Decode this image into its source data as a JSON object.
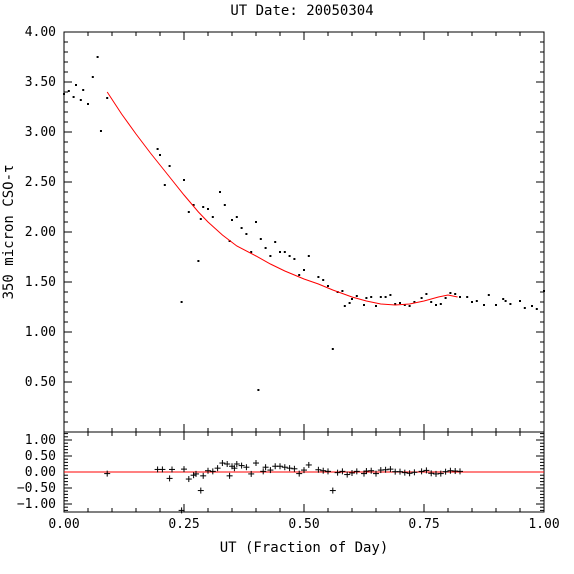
{
  "chart_data": {
    "type": "scatter",
    "title": "UT Date: 20050304",
    "xlabel": "UT (Fraction of Day)",
    "ylabel": "350 micron CSO-τ",
    "xlim": [
      0.0,
      1.0
    ],
    "ylim": [
      0.0,
      4.0
    ],
    "x_ticks": [
      "0.00",
      "0.25",
      "0.50",
      "0.75",
      "1.00"
    ],
    "y_ticks": [
      "0.50",
      "1.00",
      "1.50",
      "2.00",
      "2.50",
      "3.00",
      "3.50",
      "4.00"
    ],
    "points": [
      [
        0.0,
        3.38
      ],
      [
        0.01,
        3.41
      ],
      [
        0.02,
        3.35
      ],
      [
        0.025,
        3.47
      ],
      [
        0.035,
        3.32
      ],
      [
        0.04,
        3.42
      ],
      [
        0.05,
        3.28
      ],
      [
        0.06,
        3.55
      ],
      [
        0.07,
        3.75
      ],
      [
        0.077,
        3.01
      ],
      [
        0.09,
        3.34
      ],
      [
        0.195,
        2.83
      ],
      [
        0.2,
        2.77
      ],
      [
        0.21,
        2.47
      ],
      [
        0.22,
        2.66
      ],
      [
        0.245,
        1.3
      ],
      [
        0.25,
        2.52
      ],
      [
        0.26,
        2.2
      ],
      [
        0.27,
        2.27
      ],
      [
        0.28,
        1.71
      ],
      [
        0.285,
        2.13
      ],
      [
        0.29,
        2.25
      ],
      [
        0.3,
        2.23
      ],
      [
        0.31,
        2.15
      ],
      [
        0.325,
        2.4
      ],
      [
        0.335,
        2.27
      ],
      [
        0.345,
        1.91
      ],
      [
        0.35,
        2.12
      ],
      [
        0.36,
        2.15
      ],
      [
        0.37,
        2.04
      ],
      [
        0.38,
        1.98
      ],
      [
        0.39,
        1.8
      ],
      [
        0.4,
        2.1
      ],
      [
        0.405,
        0.42
      ],
      [
        0.41,
        1.93
      ],
      [
        0.42,
        1.84
      ],
      [
        0.43,
        1.76
      ],
      [
        0.44,
        1.9
      ],
      [
        0.45,
        1.8
      ],
      [
        0.46,
        1.8
      ],
      [
        0.47,
        1.76
      ],
      [
        0.48,
        1.73
      ],
      [
        0.49,
        1.57
      ],
      [
        0.5,
        1.62
      ],
      [
        0.51,
        1.76
      ],
      [
        0.53,
        1.55
      ],
      [
        0.54,
        1.52
      ],
      [
        0.55,
        1.46
      ],
      [
        0.56,
        0.83
      ],
      [
        0.57,
        1.4
      ],
      [
        0.58,
        1.41
      ],
      [
        0.585,
        1.26
      ],
      [
        0.595,
        1.29
      ],
      [
        0.6,
        1.33
      ],
      [
        0.61,
        1.36
      ],
      [
        0.625,
        1.27
      ],
      [
        0.63,
        1.34
      ],
      [
        0.64,
        1.35
      ],
      [
        0.65,
        1.26
      ],
      [
        0.66,
        1.35
      ],
      [
        0.67,
        1.35
      ],
      [
        0.68,
        1.37
      ],
      [
        0.69,
        1.28
      ],
      [
        0.7,
        1.29
      ],
      [
        0.71,
        1.27
      ],
      [
        0.72,
        1.26
      ],
      [
        0.73,
        1.3
      ],
      [
        0.745,
        1.34
      ],
      [
        0.755,
        1.38
      ],
      [
        0.765,
        1.3
      ],
      [
        0.775,
        1.27
      ],
      [
        0.785,
        1.28
      ],
      [
        0.795,
        1.34
      ],
      [
        0.805,
        1.39
      ],
      [
        0.815,
        1.38
      ],
      [
        0.825,
        1.35
      ],
      [
        0.84,
        1.35
      ],
      [
        0.85,
        1.3
      ],
      [
        0.86,
        1.31
      ],
      [
        0.875,
        1.27
      ],
      [
        0.885,
        1.37
      ],
      [
        0.9,
        1.27
      ],
      [
        0.915,
        1.33
      ],
      [
        0.92,
        1.31
      ],
      [
        0.93,
        1.28
      ],
      [
        0.95,
        1.31
      ],
      [
        0.96,
        1.24
      ],
      [
        0.975,
        1.26
      ],
      [
        0.985,
        1.23
      ],
      [
        1.0,
        1.41
      ]
    ],
    "fit_curve": [
      [
        0.09,
        3.4
      ],
      [
        0.12,
        3.18
      ],
      [
        0.15,
        2.98
      ],
      [
        0.18,
        2.79
      ],
      [
        0.2,
        2.67
      ],
      [
        0.22,
        2.55
      ],
      [
        0.25,
        2.37
      ],
      [
        0.28,
        2.2
      ],
      [
        0.3,
        2.1
      ],
      [
        0.33,
        1.97
      ],
      [
        0.36,
        1.86
      ],
      [
        0.4,
        1.76
      ],
      [
        0.43,
        1.68
      ],
      [
        0.46,
        1.61
      ],
      [
        0.5,
        1.53
      ],
      [
        0.53,
        1.48
      ],
      [
        0.56,
        1.42
      ],
      [
        0.6,
        1.35
      ],
      [
        0.63,
        1.31
      ],
      [
        0.66,
        1.28
      ],
      [
        0.69,
        1.27
      ],
      [
        0.72,
        1.28
      ],
      [
        0.75,
        1.31
      ],
      [
        0.78,
        1.35
      ],
      [
        0.8,
        1.37
      ],
      [
        0.82,
        1.35
      ]
    ],
    "residuals": {
      "ylim": [
        -1.25,
        1.25
      ],
      "y_ticks": [
        "1.00",
        "0.50",
        "0.00",
        "−0.50",
        "−1.00"
      ],
      "points": [
        [
          0.09,
          -0.05
        ],
        [
          0.195,
          0.08
        ],
        [
          0.205,
          0.08
        ],
        [
          0.22,
          -0.2
        ],
        [
          0.225,
          0.08
        ],
        [
          0.245,
          -1.2
        ],
        [
          0.25,
          0.09
        ],
        [
          0.26,
          -0.22
        ],
        [
          0.27,
          -0.1
        ],
        [
          0.275,
          -0.06
        ],
        [
          0.285,
          -0.58
        ],
        [
          0.29,
          -0.12
        ],
        [
          0.3,
          0.04
        ],
        [
          0.31,
          0.02
        ],
        [
          0.32,
          0.12
        ],
        [
          0.33,
          0.28
        ],
        [
          0.34,
          0.25
        ],
        [
          0.345,
          -0.12
        ],
        [
          0.35,
          0.18
        ],
        [
          0.355,
          0.12
        ],
        [
          0.36,
          0.25
        ],
        [
          0.37,
          0.2
        ],
        [
          0.38,
          0.15
        ],
        [
          0.39,
          -0.06
        ],
        [
          0.4,
          0.28
        ],
        [
          0.415,
          0.02
        ],
        [
          0.42,
          0.15
        ],
        [
          0.43,
          0.06
        ],
        [
          0.44,
          0.18
        ],
        [
          0.45,
          0.18
        ],
        [
          0.46,
          0.15
        ],
        [
          0.47,
          0.12
        ],
        [
          0.48,
          0.1
        ],
        [
          0.49,
          -0.05
        ],
        [
          0.5,
          0.06
        ],
        [
          0.51,
          0.22
        ],
        [
          0.53,
          0.07
        ],
        [
          0.54,
          0.04
        ],
        [
          0.55,
          0.02
        ],
        [
          0.56,
          -0.58
        ],
        [
          0.57,
          -0.02
        ],
        [
          0.58,
          0.02
        ],
        [
          0.59,
          -0.08
        ],
        [
          0.6,
          -0.03
        ],
        [
          0.61,
          0.02
        ],
        [
          0.625,
          -0.05
        ],
        [
          0.63,
          0.03
        ],
        [
          0.64,
          0.04
        ],
        [
          0.65,
          -0.05
        ],
        [
          0.66,
          0.06
        ],
        [
          0.67,
          0.07
        ],
        [
          0.68,
          0.09
        ],
        [
          0.69,
          0.01
        ],
        [
          0.7,
          0.01
        ],
        [
          0.71,
          -0.02
        ],
        [
          0.72,
          -0.04
        ],
        [
          0.73,
          -0.01
        ],
        [
          0.745,
          0.02
        ],
        [
          0.755,
          0.05
        ],
        [
          0.765,
          -0.04
        ],
        [
          0.775,
          -0.06
        ],
        [
          0.785,
          -0.05
        ],
        [
          0.795,
          0.01
        ],
        [
          0.805,
          0.04
        ],
        [
          0.815,
          0.03
        ],
        [
          0.825,
          0.02
        ]
      ]
    },
    "marker_color": "#000000",
    "fit_color": "#ff0000",
    "grid": false,
    "legend": "none"
  }
}
